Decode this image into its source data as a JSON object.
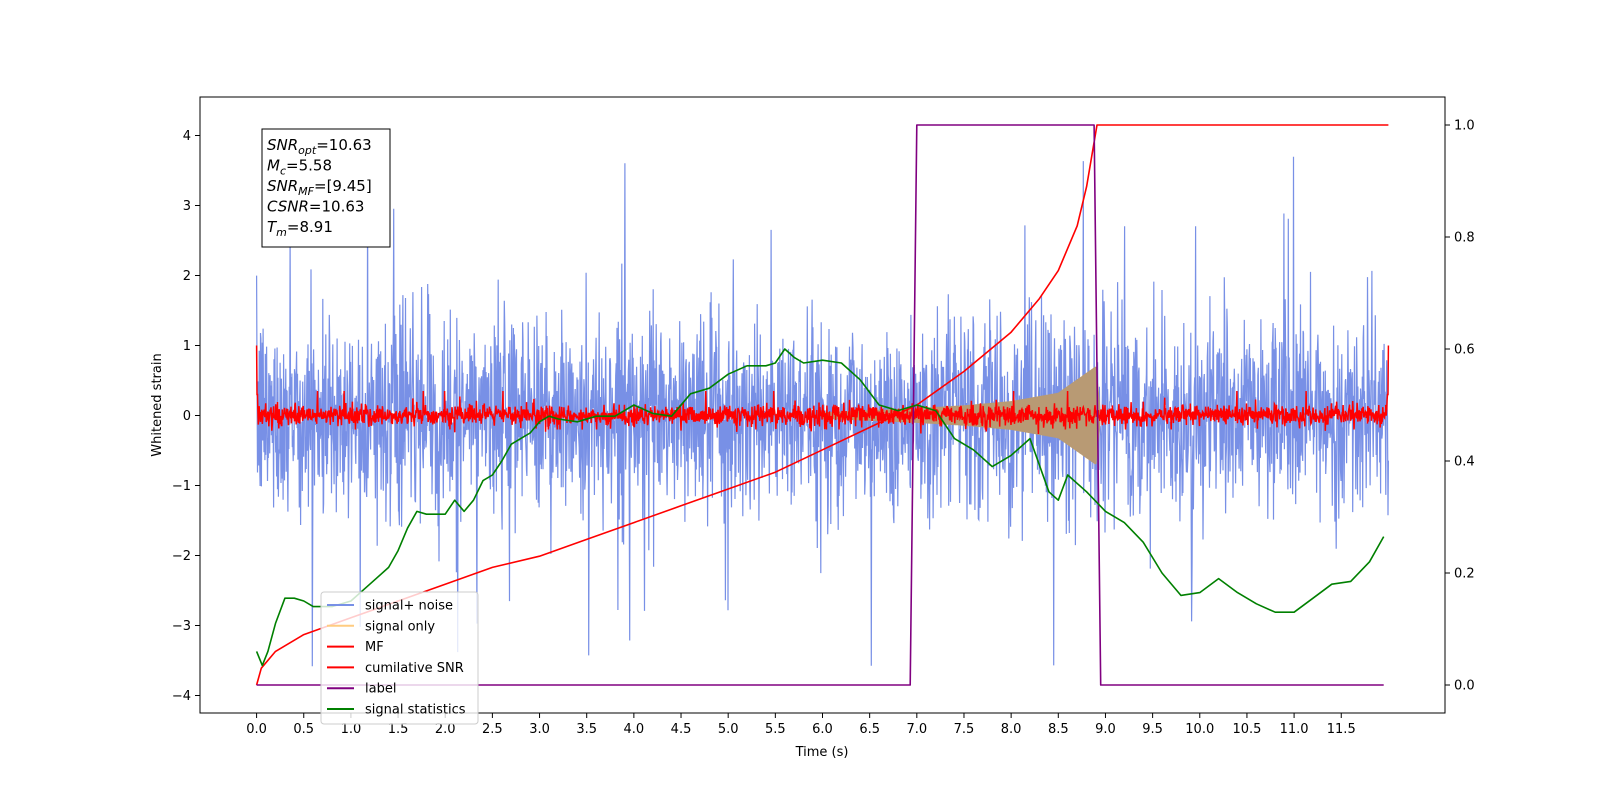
{
  "chart_data": {
    "type": "line",
    "title": "",
    "xlabel": "Time (s)",
    "ylabel": "Whitened strain",
    "y2label": "",
    "xlim": [
      -0.6,
      12.6
    ],
    "ylim": [
      -4.25,
      4.55
    ],
    "y2lim": [
      -0.05,
      1.05
    ],
    "x_ticks": [
      0.0,
      0.5,
      1.0,
      1.5,
      2.0,
      2.5,
      3.0,
      3.5,
      4.0,
      4.5,
      5.0,
      5.5,
      6.0,
      6.5,
      7.0,
      7.5,
      8.0,
      8.5,
      9.0,
      9.5,
      10.0,
      10.5,
      11.0,
      11.5
    ],
    "x_tick_labels": [
      "0.0",
      "0.5",
      "1.0",
      "1.5",
      "2.0",
      "2.5",
      "3.0",
      "3.5",
      "4.0",
      "4.5",
      "5.0",
      "5.5",
      "6.0",
      "6.5",
      "7.0",
      "7.5",
      "8.0",
      "8.5",
      "9.0",
      "9.5",
      "10.0",
      "10.5",
      "11.0",
      "11.5"
    ],
    "y_ticks": [
      -4,
      -3,
      -2,
      -1,
      0,
      1,
      2,
      3,
      4
    ],
    "y_tick_labels": [
      "−4",
      "−3",
      "−2",
      "−1",
      "0",
      "1",
      "2",
      "3",
      "4"
    ],
    "y2_ticks": [
      0.0,
      0.2,
      0.4,
      0.6,
      0.8,
      1.0
    ],
    "y2_tick_labels": [
      "0.0",
      "0.2",
      "0.4",
      "0.6",
      "0.8",
      "1.0"
    ],
    "grid": false,
    "legend_position": "lower-left",
    "annotation": [
      {
        "sym": "SNR",
        "sub": "opt",
        "val": "=10.63"
      },
      {
        "sym": "M",
        "sub": "c",
        "val": "=5.58"
      },
      {
        "sym": "SNR",
        "sub": "MF",
        "val": "=[9.45]"
      },
      {
        "sym": "CSNR",
        "sub": "",
        "val": "=10.63"
      },
      {
        "sym": "T",
        "sub": "m",
        "val": "=8.91"
      }
    ],
    "series": [
      {
        "name": "signal+ noise",
        "color": "#7890e6",
        "axis": "left",
        "shape": "noise",
        "x_range": [
          0.0,
          12.0
        ],
        "typical_range": [
          -1.8,
          1.8
        ],
        "extremes": [
          -3.8,
          4.1
        ]
      },
      {
        "name": "signal only",
        "color": "#ffcc80",
        "fill_color": "#b89a74",
        "axis": "left",
        "shape": "chirp",
        "envelope_x": [
          6.0,
          6.5,
          7.0,
          7.5,
          8.0,
          8.5,
          8.9,
          8.95
        ],
        "envelope_amp": [
          0.04,
          0.07,
          0.1,
          0.14,
          0.2,
          0.32,
          0.7,
          0.0
        ]
      },
      {
        "name": "MF",
        "color": "#ff0000",
        "axis": "left",
        "shape": "noise",
        "x_range": [
          0.0,
          12.0
        ],
        "typical_range": [
          -0.15,
          0.15
        ],
        "extremes": [
          -0.2,
          1.0
        ]
      },
      {
        "name": "cumilative SNR",
        "color": "#ff0000",
        "axis": "right",
        "x": [
          0.0,
          0.05,
          0.2,
          0.5,
          1.0,
          1.5,
          2.0,
          2.5,
          3.0,
          3.5,
          4.0,
          4.5,
          5.0,
          5.5,
          6.0,
          6.5,
          7.0,
          7.5,
          8.0,
          8.3,
          8.5,
          8.7,
          8.8,
          8.91,
          9.5,
          10.0,
          11.0,
          12.0
        ],
        "y": [
          0.0,
          0.03,
          0.06,
          0.09,
          0.12,
          0.15,
          0.18,
          0.21,
          0.23,
          0.26,
          0.29,
          0.32,
          0.35,
          0.38,
          0.42,
          0.46,
          0.5,
          0.56,
          0.63,
          0.69,
          0.74,
          0.82,
          0.89,
          1.0,
          1.0,
          1.0,
          1.0,
          1.0
        ]
      },
      {
        "name": "label",
        "color": "#800080",
        "axis": "right",
        "x": [
          0.0,
          6.93,
          7.0,
          8.88,
          8.95,
          11.95
        ],
        "y": [
          0.0,
          0.0,
          1.0,
          1.0,
          0.0,
          0.0
        ]
      },
      {
        "name": "signal statistics",
        "color": "#008000",
        "axis": "right",
        "x": [
          0.0,
          0.06,
          0.12,
          0.2,
          0.3,
          0.4,
          0.5,
          0.6,
          0.7,
          0.8,
          1.0,
          1.2,
          1.4,
          1.5,
          1.6,
          1.7,
          1.8,
          2.0,
          2.1,
          2.2,
          2.3,
          2.4,
          2.5,
          2.6,
          2.7,
          2.8,
          2.9,
          3.0,
          3.1,
          3.2,
          3.4,
          3.6,
          3.8,
          4.0,
          4.2,
          4.4,
          4.6,
          4.8,
          5.0,
          5.2,
          5.4,
          5.5,
          5.6,
          5.7,
          5.8,
          6.0,
          6.2,
          6.4,
          6.6,
          6.8,
          7.0,
          7.2,
          7.4,
          7.6,
          7.8,
          8.0,
          8.2,
          8.4,
          8.5,
          8.6,
          8.8,
          9.0,
          9.2,
          9.4,
          9.6,
          9.8,
          10.0,
          10.2,
          10.4,
          10.6,
          10.8,
          11.0,
          11.2,
          11.4,
          11.6,
          11.8,
          11.95
        ],
        "y": [
          0.06,
          0.035,
          0.06,
          0.11,
          0.155,
          0.155,
          0.15,
          0.14,
          0.14,
          0.14,
          0.15,
          0.18,
          0.21,
          0.24,
          0.28,
          0.31,
          0.305,
          0.305,
          0.33,
          0.31,
          0.33,
          0.365,
          0.375,
          0.4,
          0.43,
          0.44,
          0.45,
          0.47,
          0.48,
          0.475,
          0.47,
          0.48,
          0.48,
          0.5,
          0.485,
          0.48,
          0.52,
          0.53,
          0.555,
          0.57,
          0.57,
          0.575,
          0.6,
          0.585,
          0.575,
          0.58,
          0.575,
          0.545,
          0.5,
          0.49,
          0.5,
          0.49,
          0.44,
          0.42,
          0.39,
          0.41,
          0.44,
          0.345,
          0.33,
          0.375,
          0.345,
          0.31,
          0.29,
          0.255,
          0.2,
          0.16,
          0.165,
          0.19,
          0.165,
          0.145,
          0.13,
          0.13,
          0.155,
          0.18,
          0.185,
          0.22,
          0.265
        ]
      }
    ]
  }
}
